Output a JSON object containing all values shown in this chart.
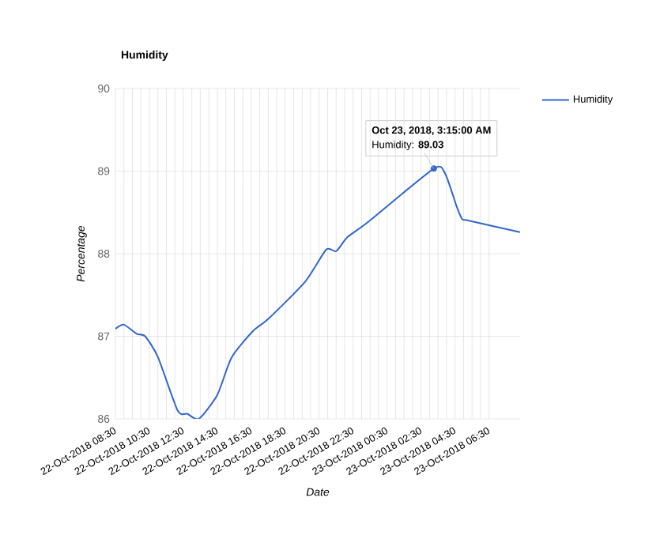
{
  "chart_data": {
    "type": "line",
    "title": "Humidity",
    "xlabel": "Date",
    "ylabel": "Percentage",
    "x": [
      "2018-10-22T08:30",
      "2018-10-22T09:00",
      "2018-10-22T09:45",
      "2018-10-22T10:15",
      "2018-10-22T11:00",
      "2018-10-22T12:10",
      "2018-10-22T12:45",
      "2018-10-22T13:25",
      "2018-10-22T14:30",
      "2018-10-22T15:20",
      "2018-10-22T16:35",
      "2018-10-22T17:30",
      "2018-10-22T19:40",
      "2018-10-22T20:55",
      "2018-10-22T21:30",
      "2018-10-22T22:10",
      "2018-10-22T23:25",
      "2018-10-23T03:15",
      "2018-10-23T03:55",
      "2018-10-23T04:35",
      "2018-10-23T04:55",
      "2018-10-23T05:20",
      "2018-10-23T08:20"
    ],
    "series": [
      {
        "name": "Humidity",
        "color": "#3366cc",
        "values": [
          87.09,
          87.14,
          87.03,
          87.0,
          86.75,
          86.1,
          86.06,
          86.0,
          86.29,
          86.74,
          87.06,
          87.21,
          87.66,
          88.05,
          88.03,
          88.2,
          88.39,
          89.03,
          88.97,
          88.58,
          88.42,
          88.4,
          88.26
        ]
      }
    ],
    "xlim": [
      "2018-10-22T08:30",
      "2018-10-23T08:20"
    ],
    "xticks": [
      {
        "value": "2018-10-22T08:30",
        "label": "22-Oct-2018 08:30"
      },
      {
        "value": "2018-10-22T10:30",
        "label": "22-Oct-2018 10:30"
      },
      {
        "value": "2018-10-22T12:30",
        "label": "22-Oct-2018 12:30"
      },
      {
        "value": "2018-10-22T14:30",
        "label": "22-Oct-2018 14:30"
      },
      {
        "value": "2018-10-22T16:30",
        "label": "22-Oct-2018 16:30"
      },
      {
        "value": "2018-10-22T18:30",
        "label": "22-Oct-2018 18:30"
      },
      {
        "value": "2018-10-22T20:30",
        "label": "22-Oct-2018 20:30"
      },
      {
        "value": "2018-10-22T22:30",
        "label": "22-Oct-2018 22:30"
      },
      {
        "value": "2018-10-23T00:30",
        "label": "23-Oct-2018 00:30"
      },
      {
        "value": "2018-10-23T02:30",
        "label": "23-Oct-2018 02:30"
      },
      {
        "value": "2018-10-23T04:30",
        "label": "23-Oct-2018 04:30"
      },
      {
        "value": "2018-10-23T06:30",
        "label": "23-Oct-2018 06:30"
      }
    ],
    "ylim": [
      86,
      90
    ],
    "yticks": [
      86,
      87,
      88,
      89,
      90
    ],
    "grid": true,
    "legend": "top right",
    "marker": "none",
    "line_style": "solid",
    "annotations": [
      "**Oct 23, 2018, 3:15:00 AM**",
      {
        "text": "Humidity: **89.03**",
        "x": "2018-10-23T03:15",
        "y": 89.03
      }
    ]
  }
}
